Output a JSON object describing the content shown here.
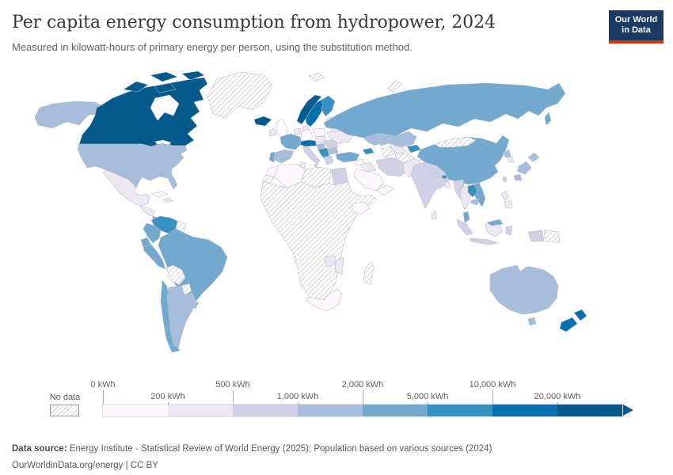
{
  "header": {
    "title": "Per capita energy consumption from hydropower, 2024",
    "subtitle": "Measured in kilowatt-hours of primary energy per person, using the substitution method.",
    "logo": {
      "line1": "Our World",
      "line2": "in Data",
      "bg_color": "#1a3a63",
      "accent_color": "#dc3214"
    }
  },
  "footer": {
    "datasource_label": "Data source:",
    "datasource_text": " Energy Institute - Statistical Review of World Energy (2025); Population based on various sources (2024)",
    "license_text": "OurWorldinData.org/energy | CC BY"
  },
  "chart_data": {
    "type": "choropleth_map",
    "title": "Per capita energy consumption from hydropower, 2024",
    "subtitle": "Measured in kilowatt-hours of primary energy per person, using the substitution method.",
    "unit": "kWh",
    "legend": {
      "no_data_label": "No data",
      "thresholds": [
        "0 kWh",
        "200 kWh",
        "500 kWh",
        "1,000 kWh",
        "2,000 kWh",
        "5,000 kWh",
        "10,000 kWh",
        "20,000 kWh"
      ],
      "bin_labels": [
        "0–200 kWh",
        "200–500 kWh",
        "500–1,000 kWh",
        "1,000–2,000 kWh",
        "2,000–5,000 kWh",
        "5,000–10,000 kWh",
        "10,000–20,000 kWh",
        "20,000+ kWh"
      ],
      "bin_colors": [
        "#fff7fb",
        "#ece7f2",
        "#d0d1e6",
        "#a6bddb",
        "#74a9cf",
        "#3690c0",
        "#0570b0",
        "#045a8d"
      ],
      "open_ended_arrow": true,
      "no_data_pattern": "diagonal-hatch"
    },
    "countries": [
      {
        "id": "alaska",
        "name": "United States (Alaska)",
        "bin": 3
      },
      {
        "id": "canada",
        "name": "Canada",
        "bin": 7
      },
      {
        "id": "canada-islands",
        "name": "Canada (Arctic islands)",
        "bin": 7
      },
      {
        "id": "greenland",
        "name": "Greenland",
        "bin": -1
      },
      {
        "id": "iceland",
        "name": "Iceland",
        "bin": 7
      },
      {
        "id": "usa",
        "name": "United States",
        "bin": 3
      },
      {
        "id": "mexico",
        "name": "Mexico",
        "bin": 1
      },
      {
        "id": "guatemala-honduras",
        "name": "Central America (north)",
        "bin": 1
      },
      {
        "id": "costa-rica-panama",
        "name": "Costa Rica & Panama",
        "bin": 4
      },
      {
        "id": "cuba",
        "name": "Cuba",
        "bin": 0
      },
      {
        "id": "hispaniola",
        "name": "Hispaniola",
        "bin": 1
      },
      {
        "id": "venezuela",
        "name": "Venezuela",
        "bin": 5
      },
      {
        "id": "guyana-suriname",
        "name": "Guyana & Suriname",
        "bin": -1
      },
      {
        "id": "colombia",
        "name": "Colombia",
        "bin": 4
      },
      {
        "id": "ecuador",
        "name": "Ecuador",
        "bin": 4
      },
      {
        "id": "peru",
        "name": "Peru",
        "bin": 4
      },
      {
        "id": "brazil",
        "name": "Brazil",
        "bin": 4
      },
      {
        "id": "bolivia",
        "name": "Bolivia",
        "bin": -1
      },
      {
        "id": "paraguay",
        "name": "Paraguay",
        "bin": -1
      },
      {
        "id": "chile",
        "name": "Chile",
        "bin": 4
      },
      {
        "id": "argentina",
        "name": "Argentina",
        "bin": 3
      },
      {
        "id": "uruguay",
        "name": "Uruguay",
        "bin": 3
      },
      {
        "id": "uk",
        "name": "United Kingdom",
        "bin": 0
      },
      {
        "id": "ireland",
        "name": "Ireland",
        "bin": 1
      },
      {
        "id": "norway",
        "name": "Norway",
        "bin": 7
      },
      {
        "id": "sweden",
        "name": "Sweden",
        "bin": 6
      },
      {
        "id": "finland",
        "name": "Finland",
        "bin": 5
      },
      {
        "id": "denmark",
        "name": "Denmark",
        "bin": 1
      },
      {
        "id": "baltics",
        "name": "Baltic states",
        "bin": 1
      },
      {
        "id": "germany",
        "name": "Germany",
        "bin": 0
      },
      {
        "id": "poland",
        "name": "Poland",
        "bin": 0
      },
      {
        "id": "benelux",
        "name": "Netherlands & Belgium",
        "bin": 1
      },
      {
        "id": "france",
        "name": "France",
        "bin": 4
      },
      {
        "id": "spain",
        "name": "Spain",
        "bin": 3
      },
      {
        "id": "portugal",
        "name": "Portugal",
        "bin": 4
      },
      {
        "id": "alpine",
        "name": "Switzerland & Austria",
        "bin": 6
      },
      {
        "id": "italy",
        "name": "Italy",
        "bin": 2
      },
      {
        "id": "czech-hungary",
        "name": "Czechia, Slovakia & Hungary",
        "bin": 1
      },
      {
        "id": "croatia-slovenia",
        "name": "Slovenia & Croatia",
        "bin": 3
      },
      {
        "id": "west-balkans",
        "name": "Bosnia, Serbia & Albania",
        "bin": 5
      },
      {
        "id": "bulgaria",
        "name": "Bulgaria",
        "bin": 3
      },
      {
        "id": "greece",
        "name": "Greece",
        "bin": 2
      },
      {
        "id": "romania",
        "name": "Romania",
        "bin": 2
      },
      {
        "id": "ukraine",
        "name": "Ukraine",
        "bin": 1
      },
      {
        "id": "belarus",
        "name": "Belarus",
        "bin": 1
      },
      {
        "id": "russia",
        "name": "Russia",
        "bin": 4
      },
      {
        "id": "sakhalin",
        "name": "Russia (Sakhalin)",
        "bin": 4
      },
      {
        "id": "svalbard",
        "name": "Svalbard",
        "bin": -1
      },
      {
        "id": "novaya-zemlya",
        "name": "Novaya Zemlya",
        "bin": -1
      },
      {
        "id": "kazakhstan",
        "name": "Kazakhstan",
        "bin": 3
      },
      {
        "id": "uzbekistan",
        "name": "Uzbekistan",
        "bin": 1
      },
      {
        "id": "turkmenistan",
        "name": "Turkmenistan",
        "bin": -1
      },
      {
        "id": "kyrgyz-tajik",
        "name": "Kyrgyzstan & Tajikistan",
        "bin": 5
      },
      {
        "id": "caucasus",
        "name": "Georgia, Armenia & Azerbaijan",
        "bin": 5
      },
      {
        "id": "turkey",
        "name": "Turkey",
        "bin": 4
      },
      {
        "id": "syria",
        "name": "Syria",
        "bin": 0
      },
      {
        "id": "iraq",
        "name": "Iraq",
        "bin": 1
      },
      {
        "id": "iran",
        "name": "Iran",
        "bin": 2
      },
      {
        "id": "afghanistan",
        "name": "Afghanistan",
        "bin": -1
      },
      {
        "id": "pakistan",
        "name": "Pakistan",
        "bin": 1
      },
      {
        "id": "saudi",
        "name": "Saudi Arabia",
        "bin": 0
      },
      {
        "id": "yemen-oman",
        "name": "Yemen & Oman",
        "bin": 0
      },
      {
        "id": "morocco",
        "name": "Morocco",
        "bin": 0
      },
      {
        "id": "wsahara",
        "name": "Western Sahara",
        "bin": -1
      },
      {
        "id": "algeria",
        "name": "Algeria",
        "bin": 0
      },
      {
        "id": "tunisia",
        "name": "Tunisia",
        "bin": 1
      },
      {
        "id": "libya",
        "name": "Libya",
        "bin": -1
      },
      {
        "id": "egypt",
        "name": "Egypt",
        "bin": 2
      },
      {
        "id": "subsaharan",
        "name": "Sub-Saharan Africa (most, no data)",
        "bin": -1
      },
      {
        "id": "ethiopia",
        "name": "Ethiopia",
        "bin": 0
      },
      {
        "id": "zambia",
        "name": "Zambia",
        "bin": 1
      },
      {
        "id": "mozambique",
        "name": "Mozambique",
        "bin": 1
      },
      {
        "id": "south-africa",
        "name": "South Africa",
        "bin": 0
      },
      {
        "id": "madagascar",
        "name": "Madagascar",
        "bin": -1
      },
      {
        "id": "india",
        "name": "India",
        "bin": 2
      },
      {
        "id": "nepal",
        "name": "Nepal",
        "bin": 2
      },
      {
        "id": "bhutan",
        "name": "Bhutan",
        "bin": 5
      },
      {
        "id": "bangladesh",
        "name": "Bangladesh",
        "bin": 1
      },
      {
        "id": "sri-lanka",
        "name": "Sri Lanka",
        "bin": 1
      },
      {
        "id": "china",
        "name": "China",
        "bin": 4
      },
      {
        "id": "mongolia",
        "name": "Mongolia",
        "bin": -1
      },
      {
        "id": "taiwan",
        "name": "Taiwan",
        "bin": 2
      },
      {
        "id": "north-korea",
        "name": "North Korea",
        "bin": 3
      },
      {
        "id": "south-korea",
        "name": "South Korea",
        "bin": 1
      },
      {
        "id": "japan",
        "name": "Japan",
        "bin": 3
      },
      {
        "id": "myanmar",
        "name": "Myanmar",
        "bin": 2
      },
      {
        "id": "thailand",
        "name": "Thailand",
        "bin": 1
      },
      {
        "id": "laos",
        "name": "Laos",
        "bin": 5
      },
      {
        "id": "vietnam",
        "name": "Vietnam",
        "bin": 4
      },
      {
        "id": "cambodia",
        "name": "Cambodia",
        "bin": 3
      },
      {
        "id": "malaysia",
        "name": "Malaysia (peninsula)",
        "bin": 4
      },
      {
        "id": "malaysia-borneo",
        "name": "Malaysia (Borneo)",
        "bin": 4
      },
      {
        "id": "sumatra",
        "name": "Indonesia (Sumatra)",
        "bin": 2
      },
      {
        "id": "java",
        "name": "Indonesia (Java)",
        "bin": 2
      },
      {
        "id": "kalimantan",
        "name": "Indonesia (Kalimantan)",
        "bin": 1
      },
      {
        "id": "sulawesi",
        "name": "Indonesia (Sulawesi)",
        "bin": 2
      },
      {
        "id": "west-papua",
        "name": "Indonesia (Papua)",
        "bin": 2
      },
      {
        "id": "png",
        "name": "Papua New Guinea",
        "bin": -1
      },
      {
        "id": "philippines",
        "name": "Philippines",
        "bin": 1
      },
      {
        "id": "australia",
        "name": "Australia",
        "bin": 3
      },
      {
        "id": "tasmania",
        "name": "Australia (Tasmania)",
        "bin": 3
      },
      {
        "id": "new-zealand",
        "name": "New Zealand",
        "bin": 6
      }
    ]
  }
}
